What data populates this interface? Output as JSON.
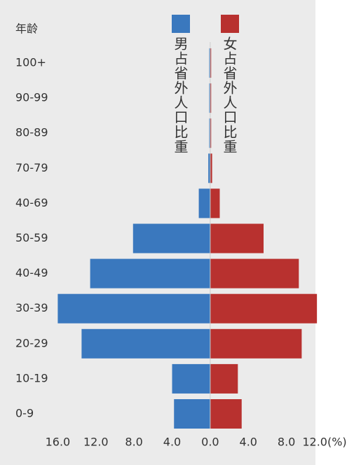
{
  "chart_data": {
    "type": "pyramid",
    "y_title": "年龄",
    "categories": [
      "100+",
      "90-99",
      "80-89",
      "70-79",
      "40-69",
      "50-59",
      "40-49",
      "30-39",
      "20-29",
      "10-19",
      "0-9"
    ],
    "series": [
      {
        "name": "男占省外人口比重",
        "color": "#3a78be",
        "side": "left",
        "values": [
          0.1,
          0.1,
          0.1,
          0.2,
          1.2,
          8.1,
          12.6,
          16.0,
          13.5,
          4.0,
          3.8
        ]
      },
      {
        "name": "女占省外人口比重",
        "color": "#b8312f",
        "side": "right",
        "values": [
          0.1,
          0.1,
          0.1,
          0.2,
          1.0,
          5.6,
          9.3,
          11.2,
          9.6,
          2.9,
          3.3
        ]
      }
    ],
    "xlim": [
      -16,
      12
    ],
    "xticks": [
      {
        "value": -16,
        "label": "16.0"
      },
      {
        "value": -12,
        "label": "12.0"
      },
      {
        "value": -8,
        "label": "8.0"
      },
      {
        "value": -4,
        "label": "4.0"
      },
      {
        "value": 0,
        "label": "0.0"
      },
      {
        "value": 4,
        "label": "4.0"
      },
      {
        "value": 8,
        "label": "8.0"
      },
      {
        "value": 12,
        "label": "12.0(%)"
      }
    ]
  }
}
